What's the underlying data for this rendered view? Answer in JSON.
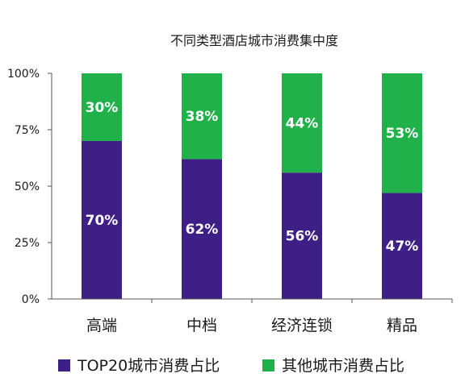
{
  "chart_data": {
    "type": "bar",
    "stacked": true,
    "title": "不同类型酒店城市消费集中度",
    "categories": [
      "高端",
      "中档",
      "经济连锁",
      "精品"
    ],
    "series": [
      {
        "name": "TOP20城市消费占比",
        "values": [
          70,
          62,
          56,
          47
        ],
        "labels": [
          "70%",
          "62%",
          "56%",
          "47%"
        ],
        "color": "#3d1f86"
      },
      {
        "name": "其他城市消费占比",
        "values": [
          30,
          38,
          44,
          53
        ],
        "labels": [
          "30%",
          "38%",
          "44%",
          "53%"
        ],
        "color": "#21b14b"
      }
    ],
    "yticks": [
      0,
      25,
      50,
      75,
      100
    ],
    "ytick_labels": [
      "0%",
      "25%",
      "50%",
      "75%",
      "100%"
    ],
    "ylim": [
      0,
      100
    ],
    "xlabel": "",
    "ylabel": "",
    "grid": false,
    "legend_position": "bottom"
  }
}
